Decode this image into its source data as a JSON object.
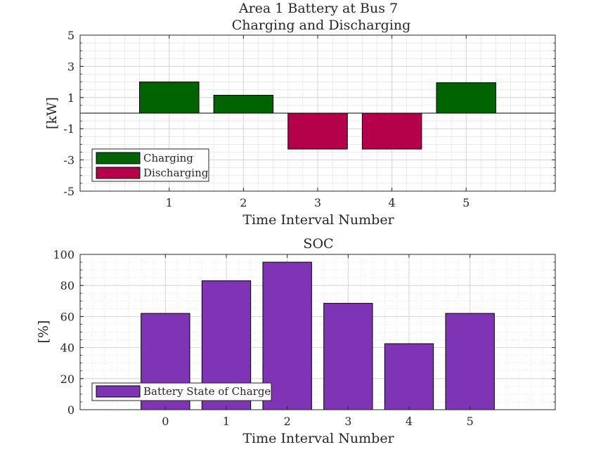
{
  "colors": {
    "charging": "#006400",
    "discharging": "#b5004a",
    "soc": "#7f33b5"
  },
  "chart_data": [
    {
      "type": "bar",
      "title": "Area 1 Battery at Bus 7",
      "subtitle": "Charging and Discharging",
      "xlabel": "Time Interval Number",
      "ylabel": "[kW]",
      "categories": [
        "1",
        "2",
        "3",
        "4",
        "5"
      ],
      "x": [
        1,
        2,
        3,
        4,
        5
      ],
      "values": [
        2.0,
        1.15,
        -2.3,
        -2.3,
        1.95
      ],
      "xlim": [
        -0.2,
        6.2
      ],
      "ylim": [
        -5,
        5
      ],
      "yticks": [
        "5",
        "3",
        "1",
        "-1",
        "-3",
        "-5"
      ],
      "grid": true,
      "minor_grid": true,
      "legend": {
        "placement": "bottom-left",
        "entries": [
          {
            "label": "Charging",
            "color": "#006400"
          },
          {
            "label": "Discharging",
            "color": "#b5004a"
          }
        ]
      }
    },
    {
      "type": "bar",
      "title": "SOC",
      "xlabel": "Time Interval Number",
      "ylabel": "[%]",
      "categories": [
        "0",
        "1",
        "2",
        "3",
        "4",
        "5"
      ],
      "x": [
        0,
        1,
        2,
        3,
        4,
        5
      ],
      "values": [
        62,
        83,
        95,
        68.5,
        42.5,
        62
      ],
      "xlim": [
        -1.4,
        6.4
      ],
      "ylim": [
        0,
        100
      ],
      "yticks": [
        "0",
        "20",
        "40",
        "60",
        "80",
        "100"
      ],
      "grid": true,
      "minor_grid": true,
      "legend": {
        "placement": "bottom-left",
        "entries": [
          {
            "label": "Battery State of Charge",
            "color": "#7f33b5"
          }
        ]
      }
    }
  ]
}
